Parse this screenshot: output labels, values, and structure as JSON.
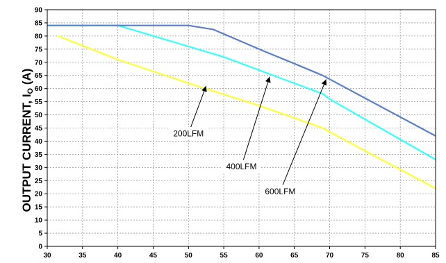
{
  "chart_data": {
    "type": "line",
    "title": "",
    "xlabel": "",
    "ylabel": "OUTPUT CURRENT, I",
    "ylabel_subscript": "O",
    "ylabel_unit": " (A)",
    "xlim": [
      30,
      85
    ],
    "ylim": [
      0,
      90
    ],
    "x_ticks": [
      30,
      35,
      40,
      45,
      50,
      55,
      60,
      65,
      70,
      75,
      80,
      85
    ],
    "y_ticks": [
      0,
      5,
      10,
      15,
      20,
      25,
      30,
      35,
      40,
      45,
      50,
      55,
      60,
      65,
      70,
      75,
      80,
      85,
      90
    ],
    "grid": true,
    "series": [
      {
        "name": "200LFM",
        "color": "#ffff33",
        "points": [
          [
            31.5,
            80
          ],
          [
            40,
            71
          ],
          [
            50,
            62
          ],
          [
            60,
            53.5
          ],
          [
            69,
            45
          ],
          [
            70,
            43.5
          ],
          [
            85,
            22
          ]
        ]
      },
      {
        "name": "400LFM",
        "color": "#33ffff",
        "points": [
          [
            30,
            84
          ],
          [
            40,
            84
          ],
          [
            50,
            76
          ],
          [
            55,
            72
          ],
          [
            60,
            67
          ],
          [
            65,
            62
          ],
          [
            69,
            58
          ],
          [
            70,
            56
          ],
          [
            85,
            33
          ]
        ]
      },
      {
        "name": "600LFM",
        "color": "#5a7fc8",
        "points": [
          [
            30,
            84
          ],
          [
            50,
            84
          ],
          [
            53.5,
            82.5
          ],
          [
            60,
            75
          ],
          [
            65,
            69.5
          ],
          [
            69,
            65
          ],
          [
            85,
            42
          ]
        ]
      }
    ],
    "annotations": [
      {
        "text": "200LFM",
        "label_at": [
          50,
          43
        ],
        "arrow_to": [
          52.5,
          61
        ]
      },
      {
        "text": "400LFM",
        "label_at": [
          57.5,
          30.5
        ],
        "arrow_to": [
          61.5,
          64.5
        ]
      },
      {
        "text": "600LFM",
        "label_at": [
          63,
          21
        ],
        "arrow_to": [
          69.5,
          63.5
        ]
      }
    ]
  }
}
